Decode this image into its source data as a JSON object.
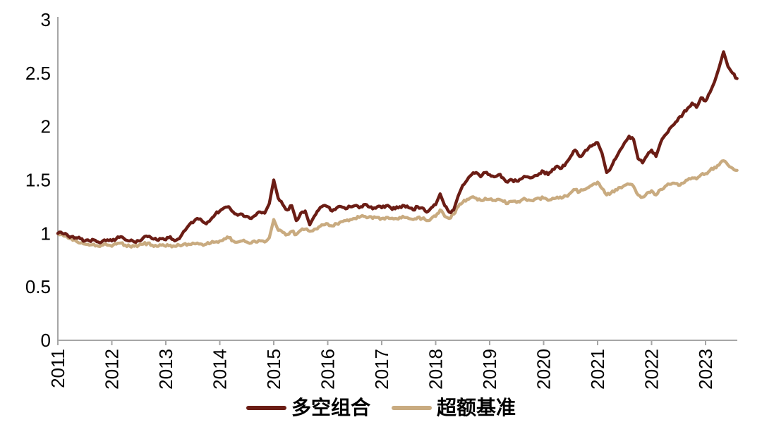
{
  "chart_data": {
    "type": "line",
    "title": "",
    "xlabel": "",
    "ylabel": "",
    "grid": false,
    "background_color": "#ffffff",
    "axis_color": "#a6a6a6",
    "tick_label_color": "#000000",
    "x_axis": {
      "ticks": [
        "2011",
        "2012",
        "2013",
        "2014",
        "2015",
        "2016",
        "2017",
        "2018",
        "2019",
        "2020",
        "2021",
        "2022",
        "2023"
      ],
      "range": [
        2011,
        2023.62
      ],
      "tick_label_rotation": -90
    },
    "y_axis": {
      "ticks": [
        "0",
        "0.5",
        "1",
        "1.5",
        "2",
        "2.5",
        "3"
      ],
      "tick_values": [
        0,
        0.5,
        1,
        1.5,
        2,
        2.5,
        3
      ],
      "range": [
        0,
        3
      ]
    },
    "legend": {
      "position": "bottom-center",
      "entries": [
        {
          "label": "多空组合",
          "color": "#6b1d15"
        },
        {
          "label": "超额基准",
          "color": "#c9ab80"
        }
      ]
    },
    "x": [
      2011.0,
      2011.083,
      2011.167,
      2011.25,
      2011.333,
      2011.417,
      2011.5,
      2011.583,
      2011.667,
      2011.75,
      2011.833,
      2011.917,
      2012.0,
      2012.083,
      2012.167,
      2012.25,
      2012.333,
      2012.417,
      2012.5,
      2012.583,
      2012.667,
      2012.75,
      2012.833,
      2012.917,
      2013.0,
      2013.083,
      2013.167,
      2013.25,
      2013.333,
      2013.417,
      2013.5,
      2013.583,
      2013.667,
      2013.75,
      2013.833,
      2013.917,
      2014.0,
      2014.083,
      2014.167,
      2014.25,
      2014.333,
      2014.417,
      2014.5,
      2014.583,
      2014.667,
      2014.75,
      2014.833,
      2014.917,
      2015.0,
      2015.083,
      2015.167,
      2015.25,
      2015.333,
      2015.417,
      2015.5,
      2015.583,
      2015.667,
      2015.75,
      2015.833,
      2015.917,
      2016.0,
      2016.083,
      2016.167,
      2016.25,
      2016.333,
      2016.417,
      2016.5,
      2016.583,
      2016.667,
      2016.75,
      2016.833,
      2016.917,
      2017.0,
      2017.083,
      2017.167,
      2017.25,
      2017.333,
      2017.417,
      2017.5,
      2017.583,
      2017.667,
      2017.75,
      2017.833,
      2017.917,
      2018.0,
      2018.083,
      2018.167,
      2018.25,
      2018.333,
      2018.417,
      2018.5,
      2018.583,
      2018.667,
      2018.75,
      2018.833,
      2018.917,
      2019.0,
      2019.083,
      2019.167,
      2019.25,
      2019.333,
      2019.417,
      2019.5,
      2019.583,
      2019.667,
      2019.75,
      2019.833,
      2019.917,
      2020.0,
      2020.083,
      2020.167,
      2020.25,
      2020.333,
      2020.417,
      2020.5,
      2020.583,
      2020.667,
      2020.75,
      2020.833,
      2020.917,
      2021.0,
      2021.083,
      2021.167,
      2021.25,
      2021.333,
      2021.417,
      2021.5,
      2021.583,
      2021.667,
      2021.75,
      2021.833,
      2021.917,
      2022.0,
      2022.083,
      2022.167,
      2022.25,
      2022.333,
      2022.417,
      2022.5,
      2022.583,
      2022.667,
      2022.75,
      2022.833,
      2022.917,
      2023.0,
      2023.083,
      2023.167,
      2023.25,
      2023.333,
      2023.417,
      2023.5,
      2023.583
    ],
    "series": [
      {
        "name": "多空组合",
        "color": "#6b1d15",
        "values": [
          1.0,
          1.0,
          0.99,
          0.97,
          0.96,
          0.95,
          0.93,
          0.93,
          0.94,
          0.92,
          0.93,
          0.94,
          0.93,
          0.95,
          0.97,
          0.94,
          0.93,
          0.92,
          0.93,
          0.96,
          0.97,
          0.95,
          0.94,
          0.95,
          0.94,
          0.97,
          0.93,
          0.95,
          1.02,
          1.07,
          1.1,
          1.14,
          1.12,
          1.09,
          1.13,
          1.18,
          1.21,
          1.24,
          1.25,
          1.2,
          1.17,
          1.18,
          1.16,
          1.14,
          1.17,
          1.2,
          1.19,
          1.28,
          1.5,
          1.33,
          1.27,
          1.22,
          1.26,
          1.12,
          1.19,
          1.21,
          1.08,
          1.16,
          1.22,
          1.26,
          1.25,
          1.21,
          1.24,
          1.25,
          1.23,
          1.25,
          1.26,
          1.24,
          1.27,
          1.25,
          1.23,
          1.25,
          1.24,
          1.26,
          1.24,
          1.23,
          1.25,
          1.26,
          1.24,
          1.22,
          1.25,
          1.24,
          1.2,
          1.24,
          1.27,
          1.37,
          1.26,
          1.2,
          1.22,
          1.35,
          1.45,
          1.5,
          1.55,
          1.57,
          1.53,
          1.57,
          1.55,
          1.53,
          1.55,
          1.52,
          1.48,
          1.5,
          1.49,
          1.51,
          1.53,
          1.52,
          1.54,
          1.56,
          1.58,
          1.55,
          1.6,
          1.63,
          1.61,
          1.66,
          1.72,
          1.78,
          1.72,
          1.76,
          1.8,
          1.83,
          1.85,
          1.75,
          1.57,
          1.62,
          1.7,
          1.78,
          1.85,
          1.91,
          1.88,
          1.7,
          1.66,
          1.73,
          1.78,
          1.72,
          1.85,
          1.92,
          1.98,
          2.02,
          2.08,
          2.12,
          2.17,
          2.22,
          2.18,
          2.27,
          2.24,
          2.32,
          2.42,
          2.55,
          2.7,
          2.56,
          2.5,
          2.45
        ]
      },
      {
        "name": "超额基准",
        "color": "#c9ab80",
        "values": [
          1.0,
          0.99,
          0.97,
          0.95,
          0.93,
          0.91,
          0.9,
          0.89,
          0.9,
          0.88,
          0.89,
          0.89,
          0.88,
          0.9,
          0.91,
          0.89,
          0.88,
          0.88,
          0.89,
          0.9,
          0.91,
          0.89,
          0.88,
          0.89,
          0.88,
          0.89,
          0.88,
          0.89,
          0.9,
          0.9,
          0.91,
          0.91,
          0.9,
          0.9,
          0.91,
          0.92,
          0.93,
          0.95,
          0.96,
          0.93,
          0.92,
          0.93,
          0.92,
          0.91,
          0.92,
          0.93,
          0.92,
          0.96,
          1.13,
          1.03,
          1.01,
          0.99,
          1.02,
          0.99,
          1.03,
          1.04,
          1.02,
          1.04,
          1.06,
          1.08,
          1.09,
          1.07,
          1.09,
          1.11,
          1.12,
          1.13,
          1.14,
          1.15,
          1.16,
          1.15,
          1.14,
          1.15,
          1.14,
          1.15,
          1.14,
          1.14,
          1.15,
          1.15,
          1.14,
          1.13,
          1.15,
          1.14,
          1.12,
          1.14,
          1.16,
          1.22,
          1.16,
          1.14,
          1.18,
          1.25,
          1.29,
          1.32,
          1.34,
          1.33,
          1.31,
          1.33,
          1.32,
          1.31,
          1.32,
          1.3,
          1.28,
          1.3,
          1.29,
          1.31,
          1.32,
          1.31,
          1.32,
          1.33,
          1.33,
          1.31,
          1.33,
          1.34,
          1.33,
          1.35,
          1.38,
          1.41,
          1.39,
          1.41,
          1.43,
          1.46,
          1.48,
          1.42,
          1.36,
          1.38,
          1.41,
          1.43,
          1.45,
          1.46,
          1.44,
          1.36,
          1.34,
          1.38,
          1.4,
          1.36,
          1.41,
          1.44,
          1.46,
          1.47,
          1.45,
          1.47,
          1.5,
          1.52,
          1.51,
          1.55,
          1.56,
          1.59,
          1.62,
          1.64,
          1.68,
          1.64,
          1.61,
          1.59
        ]
      }
    ]
  }
}
